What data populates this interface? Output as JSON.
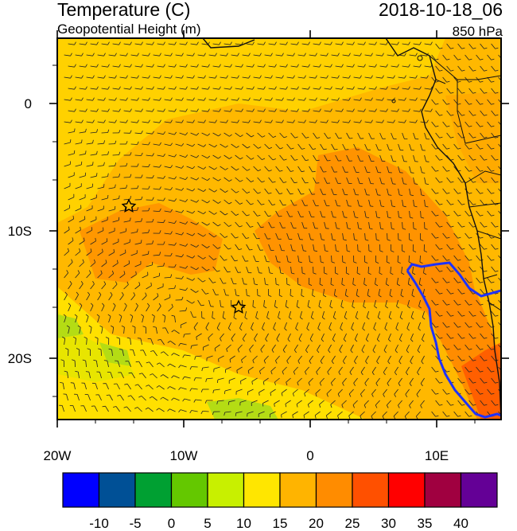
{
  "header": {
    "title": "Temperature (C)",
    "subtitle": "Geopotential Height (m)",
    "date": "2018-10-18_06",
    "level": "850 hPa"
  },
  "map": {
    "lon_ticks": [
      "20W",
      "10W",
      "0",
      "10E"
    ],
    "lat_ticks": [
      "0",
      "10S",
      "20S"
    ],
    "markers": [
      "star-marker",
      "star-marker"
    ],
    "field_colors": {
      "bg": "#ffb800",
      "yellow": "#ffe600",
      "lime": "#c8e600",
      "green": "#96d200",
      "warm": "#ff8c00",
      "hot": "#ff5000",
      "land_line": "#1a1a1a",
      "contour": "#1e32ff"
    }
  },
  "colorbar": {
    "colors": [
      "#0000ff",
      "#005096",
      "#00a032",
      "#64c800",
      "#c8f000",
      "#ffe600",
      "#ffb400",
      "#ff8c00",
      "#ff5000",
      "#ff0000",
      "#a00040",
      "#640096"
    ],
    "labels": [
      "-10",
      "-5",
      "0",
      "5",
      "10",
      "15",
      "20",
      "25",
      "30",
      "35",
      "40"
    ]
  }
}
